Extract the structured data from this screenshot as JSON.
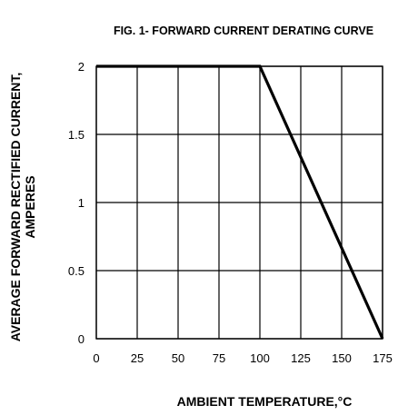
{
  "chart_data": {
    "type": "line",
    "title": "FIG. 1- FORWARD CURRENT DERATING CURVE",
    "xlabel": "AMBIENT TEMPERATURE,°C",
    "ylabel": "AVERAGE FORWARD RECTIFIED CURRENT,",
    "ylabel_line2": "AMPERES",
    "x_ticks": [
      "0",
      "25",
      "50",
      "75",
      "100",
      "125",
      "150",
      "175"
    ],
    "y_ticks": [
      "0",
      "0.5",
      "1",
      "1.5",
      "2"
    ],
    "xlim": [
      0,
      175
    ],
    "ylim": [
      0,
      2
    ],
    "grid": true,
    "series": [
      {
        "x": [
          0,
          100,
          175
        ],
        "y": [
          2,
          2,
          0
        ]
      }
    ],
    "colors": {
      "line": "#000000",
      "grid": "#000000"
    }
  }
}
